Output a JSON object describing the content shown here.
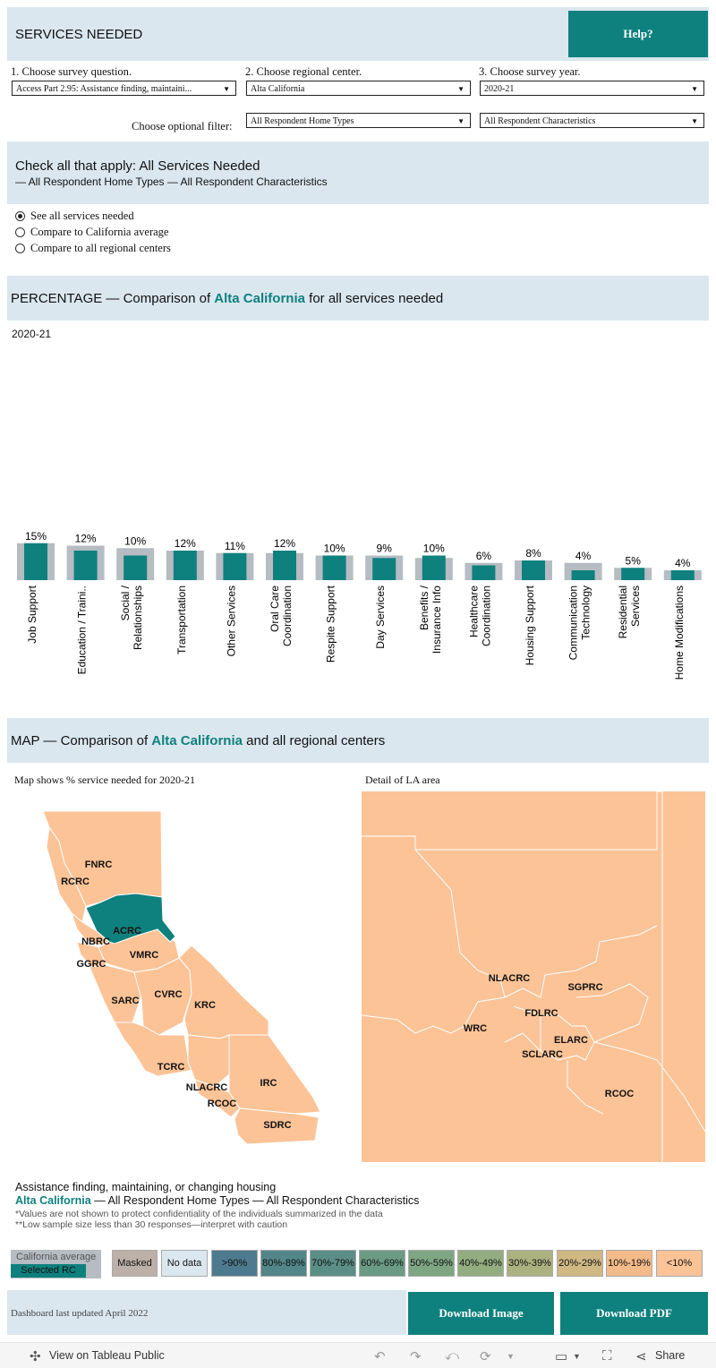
{
  "header": {
    "title": "SERVICES NEEDED",
    "help_label": "Help?"
  },
  "controls": {
    "q_label": "1. Choose survey question.",
    "q_value": "Access Part 2.95: Assistance finding, maintaini...",
    "rc_label": "2. Choose regional center.",
    "rc_value": "Alta California",
    "year_label": "3. Choose survey year.",
    "year_value": "2020-21",
    "filter_label": "Choose optional filter:",
    "home_value": "All Respondent Home Types",
    "char_value": "All Respondent Characteristics"
  },
  "check_section": {
    "title": "Check all that apply: All Services Needed",
    "subtitle": " — All Respondent Home Types — All Respondent Characteristics"
  },
  "radios": [
    {
      "label": "See all services needed",
      "selected": true
    },
    {
      "label": "Compare to California average",
      "selected": false
    },
    {
      "label": "Compare to all regional centers",
      "selected": false
    }
  ],
  "pct_section": {
    "prefix": "PERCENTAGE — Comparison of ",
    "rc": "Alta California",
    "suffix": " for all services needed"
  },
  "chart_year": "2020-21",
  "chart_data": {
    "type": "bar",
    "categories": [
      "Job Support",
      "Education / Traini..",
      "Social / Relationships",
      "Transportation",
      "Other Services",
      "Oral Care Coordination",
      "Respite Support",
      "Day Services",
      "Benefits / Insurance Info",
      "Healthcare Coordination",
      "Housing Support",
      "Communication Technology",
      "Residential Services",
      "Home Modifications"
    ],
    "category_lines": [
      [
        "Job Support"
      ],
      [
        "Education / Traini.."
      ],
      [
        "Social /",
        "Relationships"
      ],
      [
        "Transportation"
      ],
      [
        "Other Services"
      ],
      [
        "Oral Care",
        "Coordination"
      ],
      [
        "Respite Support"
      ],
      [
        "Day Services"
      ],
      [
        "Benefits /",
        "Insurance Info"
      ],
      [
        "Healthcare",
        "Coordination"
      ],
      [
        "Housing Support"
      ],
      [
        "Communication",
        "Technology"
      ],
      [
        "Residential",
        "Services"
      ],
      [
        "Home Modifications"
      ]
    ],
    "series": [
      {
        "name": "Selected RC",
        "values": [
          15,
          12,
          10,
          12,
          11,
          12,
          10,
          9,
          10,
          6,
          8,
          4,
          5,
          4
        ]
      },
      {
        "name": "California average",
        "values": [
          15,
          14,
          13,
          12,
          11,
          11,
          10,
          10,
          9,
          7,
          8,
          7,
          5,
          4
        ]
      }
    ],
    "labels": [
      "15%",
      "12%",
      "10%",
      "12%",
      "11%",
      "12%",
      "10%",
      "9%",
      "10%",
      "6%",
      "8%",
      "4%",
      "5%",
      "4%"
    ],
    "ylim": [
      0,
      60
    ],
    "colors": {
      "rc": "#0e817e",
      "avg": "#b6bcc2"
    }
  },
  "map_section": {
    "prefix": "MAP — Comparison of ",
    "rc": "Alta California",
    "suffix": " and all regional centers"
  },
  "map": {
    "caption": "Map shows % service needed for 2020-21",
    "la_caption": "Detail of LA area",
    "ca_labels": [
      "FNRC",
      "RCRC",
      "ACRC",
      "NBRC",
      "GGRC",
      "VMRC",
      "SARC",
      "CVRC",
      "KRC",
      "TCRC",
      "NLACRC",
      "RCOC",
      "IRC",
      "SDRC"
    ],
    "la_labels": [
      "NLACRC",
      "SGPRC",
      "FDLRC",
      "WRC",
      "ELARC",
      "SCLARC",
      "RCOC"
    ],
    "fill": "#fcc397",
    "selected_fill": "#0e817e"
  },
  "notes": {
    "question": "Assistance finding, maintaining, or changing housing",
    "rc": "Alta California",
    "rc_suffix": " — All Respondent Home Types — All Respondent Characteristics",
    "note1": "*Values are not shown to protect confidentiality of the individuals summarized in the data",
    "note2": " **Low sample size less than 30 responses—interpret with caution"
  },
  "legend": {
    "ca_avg": "California average",
    "selected": "Selected RC",
    "items": [
      {
        "label": "Masked",
        "color": "#bdb0a8"
      },
      {
        "label": "No data",
        "color": "#dbe7ef"
      },
      {
        "label": ">90%",
        "color": "#4d7a8e"
      },
      {
        "label": "80%-89%",
        "color": "#528689"
      },
      {
        "label": "70%-79%",
        "color": "#5b8e86"
      },
      {
        "label": "60%-69%",
        "color": "#6b9a85"
      },
      {
        "label": "50%-59%",
        "color": "#7ea683"
      },
      {
        "label": "40%-49%",
        "color": "#93ad80"
      },
      {
        "label": "30%-39%",
        "color": "#acb27f"
      },
      {
        "label": "20%-29%",
        "color": "#d0b884"
      },
      {
        "label": "10%-19%",
        "color": "#f3ba8a"
      },
      {
        "label": "<10%",
        "color": "#fcc397"
      }
    ]
  },
  "footer": {
    "updated": "Dashboard last updated April 2022",
    "download_image": "Download Image",
    "download_pdf": "Download PDF"
  },
  "toolbar": {
    "view_label": "View on Tableau Public",
    "share_label": "Share"
  }
}
